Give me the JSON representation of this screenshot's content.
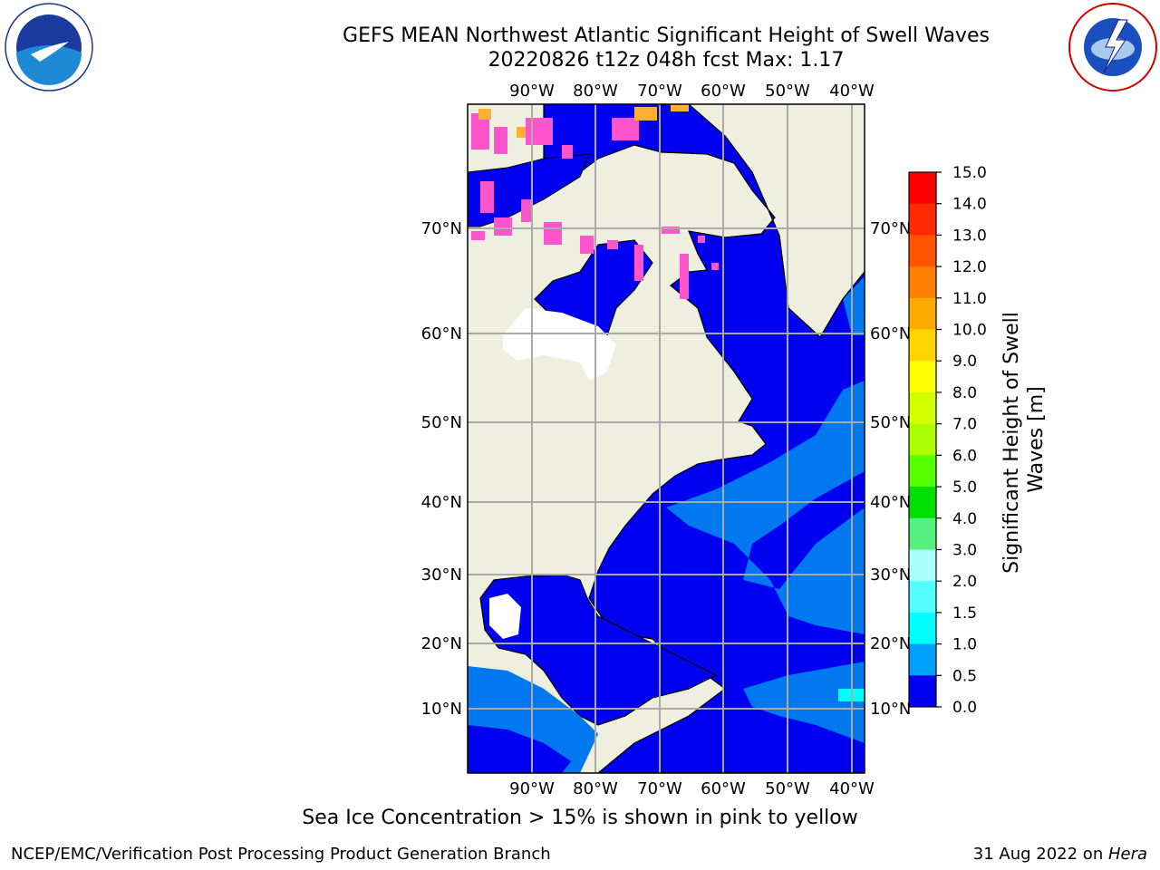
{
  "title": {
    "line1": "GEFS MEAN Northwest Atlantic Significant Height of Swell Waves",
    "line2": "20220826 t12z 048h fcst   Max: 1.17"
  },
  "map": {
    "lon_ticks": [
      "90°W",
      "80°W",
      "70°W",
      "60°W",
      "50°W",
      "40°W"
    ],
    "lat_ticks": [
      "70°N",
      "60°N",
      "50°N",
      "40°N",
      "30°N",
      "20°N",
      "10°N"
    ],
    "colors": {
      "land": "#efefdf",
      "ocean_low": "#0000f0",
      "ocean_mid": "#0078f0",
      "ice_pink": "#ff55cc",
      "ice_yellow": "#ffb030",
      "grid": "#aaaaaa"
    }
  },
  "colorbar": {
    "label": "Significant Height of Swell Waves [m]",
    "levels": [
      "15.0",
      "14.0",
      "13.0",
      "12.0",
      "11.0",
      "10.0",
      "9.0",
      "8.0",
      "7.0",
      "6.0",
      "5.0",
      "4.0",
      "3.0",
      "2.0",
      "1.5",
      "1.0",
      "0.5",
      "0.0"
    ],
    "colors": [
      "#ff0000",
      "#ff2a00",
      "#ff5500",
      "#ff7f00",
      "#ffaa00",
      "#ffd400",
      "#ffff00",
      "#d4ff00",
      "#aaff00",
      "#55ff00",
      "#00e000",
      "#55f080",
      "#aaffff",
      "#55ffff",
      "#00ffff",
      "#00a0ff",
      "#0000f0"
    ]
  },
  "note": "Sea Ice Concentration > 15% is shown in pink to yellow",
  "footer": {
    "left": "NCEP/EMC/Verification Post Processing Product Generation Branch",
    "right_date": "31 Aug 2022 on ",
    "right_host": "Hera"
  }
}
